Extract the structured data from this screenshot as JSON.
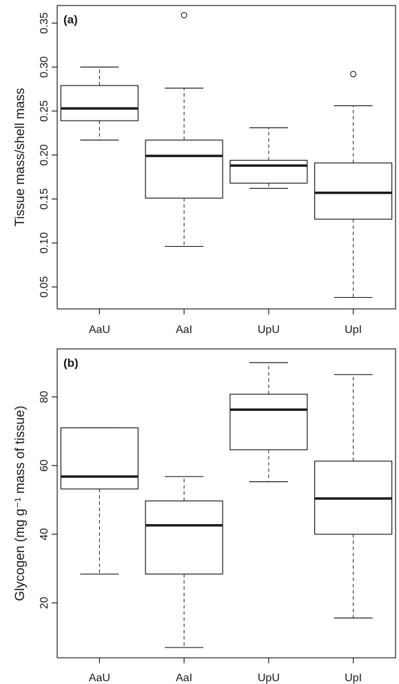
{
  "chart_data": [
    {
      "panel_label": "(a)",
      "type": "box",
      "categories": [
        "AaU",
        "AaI",
        "UpU",
        "UpI"
      ],
      "ylabel": "Tissue mass/shell mass",
      "xlabel": "",
      "ylim": [
        0.025,
        0.37
      ],
      "yticks": [
        0.05,
        0.1,
        0.15,
        0.2,
        0.25,
        0.3,
        0.35
      ],
      "ytick_labels": [
        "0.05",
        "0.10",
        "0.15",
        "0.20",
        "0.25",
        "0.30",
        "0.35"
      ],
      "boxes": [
        {
          "category": "AaU",
          "whisker_low": 0.217,
          "q1": 0.239,
          "median": 0.253,
          "q3": 0.279,
          "whisker_high": 0.3,
          "outliers": []
        },
        {
          "category": "AaI",
          "whisker_low": 0.096,
          "q1": 0.151,
          "median": 0.199,
          "q3": 0.217,
          "whisker_high": 0.276,
          "outliers": [
            0.359
          ]
        },
        {
          "category": "UpU",
          "whisker_low": 0.162,
          "q1": 0.168,
          "median": 0.188,
          "q3": 0.194,
          "whisker_high": 0.231,
          "outliers": []
        },
        {
          "category": "UpI",
          "whisker_low": 0.038,
          "q1": 0.127,
          "median": 0.157,
          "q3": 0.191,
          "whisker_high": 0.256,
          "outliers": [
            0.292
          ]
        }
      ]
    },
    {
      "panel_label": "(b)",
      "type": "box",
      "categories": [
        "AaU",
        "AaI",
        "UpU",
        "UpI"
      ],
      "ylabel": "Glycogen (mg g⁻¹ mass of tissue)",
      "xlabel": "",
      "ylim": [
        4,
        94
      ],
      "yticks": [
        20,
        40,
        60,
        80
      ],
      "ytick_labels": [
        "20",
        "40",
        "60",
        "80"
      ],
      "boxes": [
        {
          "category": "AaU",
          "whisker_low": 28.4,
          "q1": 53.2,
          "median": 56.8,
          "q3": 71.0,
          "whisker_high": 71.0,
          "outliers": []
        },
        {
          "category": "AaI",
          "whisker_low": 7.0,
          "q1": 28.4,
          "median": 42.6,
          "q3": 49.7,
          "whisker_high": 56.8,
          "outliers": []
        },
        {
          "category": "UpU",
          "whisker_low": 55.3,
          "q1": 64.6,
          "median": 76.3,
          "q3": 80.8,
          "whisker_high": 90.0,
          "outliers": []
        },
        {
          "category": "UpI",
          "whisker_low": 15.6,
          "q1": 40.0,
          "median": 50.4,
          "q3": 61.3,
          "whisker_high": 86.5,
          "outliers": []
        }
      ]
    }
  ]
}
